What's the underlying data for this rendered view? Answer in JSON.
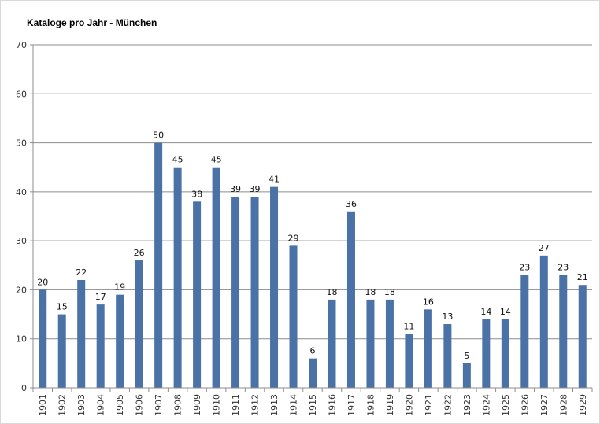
{
  "chart_data": {
    "type": "bar",
    "title": "Kataloge pro Jahr - München",
    "xlabel": "",
    "ylabel": "",
    "ylim": [
      0,
      70
    ],
    "yticks": [
      0,
      10,
      20,
      30,
      40,
      50,
      60,
      70
    ],
    "grid": true,
    "legend": "none",
    "categories": [
      "1901",
      "1902",
      "1903",
      "1904",
      "1905",
      "1906",
      "1907",
      "1908",
      "1909",
      "1910",
      "1911",
      "1912",
      "1913",
      "1914",
      "1915",
      "1916",
      "1917",
      "1918",
      "1919",
      "1920",
      "1921",
      "1922",
      "1923",
      "1924",
      "1925",
      "1926",
      "1927",
      "1928",
      "1929"
    ],
    "values": [
      20,
      15,
      22,
      17,
      19,
      26,
      50,
      45,
      38,
      45,
      39,
      39,
      41,
      29,
      6,
      18,
      36,
      18,
      18,
      11,
      16,
      13,
      5,
      14,
      14,
      23,
      27,
      23,
      21
    ],
    "bar_color": "#4a72a6"
  }
}
